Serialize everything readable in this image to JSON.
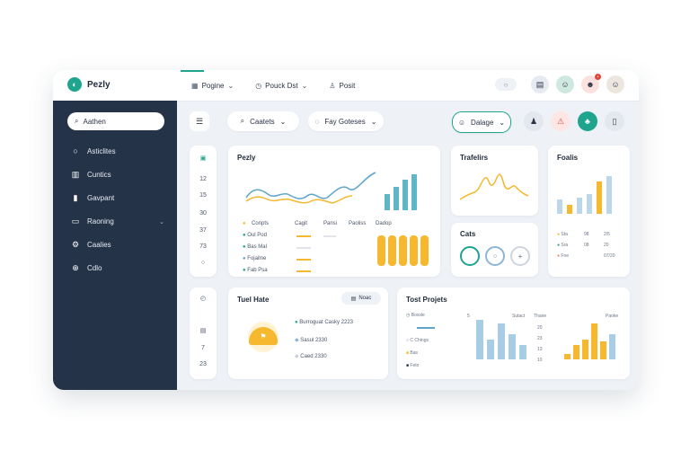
{
  "app": {
    "name": "Pezly"
  },
  "topnav": [
    {
      "icon": "grid-icon",
      "label": "Pogine"
    },
    {
      "icon": "clock-icon",
      "label": "Pouck Dst"
    },
    {
      "icon": "person-icon",
      "label": "Posit"
    }
  ],
  "sidebar": {
    "search_value": "Aathen",
    "items": [
      {
        "label": "Asticlites"
      },
      {
        "label": "Cuntics"
      },
      {
        "label": "Gavpant"
      },
      {
        "label": "Raoning"
      },
      {
        "label": "Caalies"
      },
      {
        "label": "Cdlo"
      }
    ]
  },
  "toolbar": {
    "search_label": "Caatets",
    "filter_label": "Fay Goteses",
    "sort_label": "Dalage"
  },
  "left_mini": {
    "values": [
      "12",
      "15",
      "30",
      "37",
      "73"
    ]
  },
  "left_mini2": {
    "values": [
      "7",
      "23"
    ]
  },
  "pezly_card": {
    "title": "Pezly",
    "headers": [
      "Conpts",
      "Cagit",
      "Pansi",
      "Paoliss",
      "Dadop"
    ],
    "rows": [
      "Oul Pod",
      "Bas Mal",
      "Fojailne",
      "Fab Psa"
    ]
  },
  "trafelites": {
    "title": "Trafelirs"
  },
  "cats": {
    "title": "Cats"
  },
  "foalis": {
    "title": "Foalis",
    "legend": [
      {
        "label": "Sta",
        "v1": "98",
        "v2": "2/5"
      },
      {
        "label": "Sra",
        "v1": "08",
        "v2": "20"
      },
      {
        "label": "Fne",
        "v1": "",
        "v2": "07/20"
      }
    ]
  },
  "thehate": {
    "title": "Tuel Hate",
    "button": "Noac",
    "items": [
      "Burroguat Casky 2223",
      "Sasul 2330",
      "Caed 2330"
    ]
  },
  "test_projects": {
    "title": "Tost Projets",
    "legend": [
      "Boxsle",
      "C Chings",
      "Bas",
      "Feto"
    ],
    "top_labels": [
      "5",
      "Sutact",
      "Thane",
      "Paoke"
    ],
    "small_vals": [
      "20",
      "23",
      "13",
      "10"
    ]
  },
  "colors": {
    "accent": "#1fa48e",
    "sidebar": "#253349",
    "yellow": "#f5b82e",
    "blue": "#5fa5c8"
  }
}
